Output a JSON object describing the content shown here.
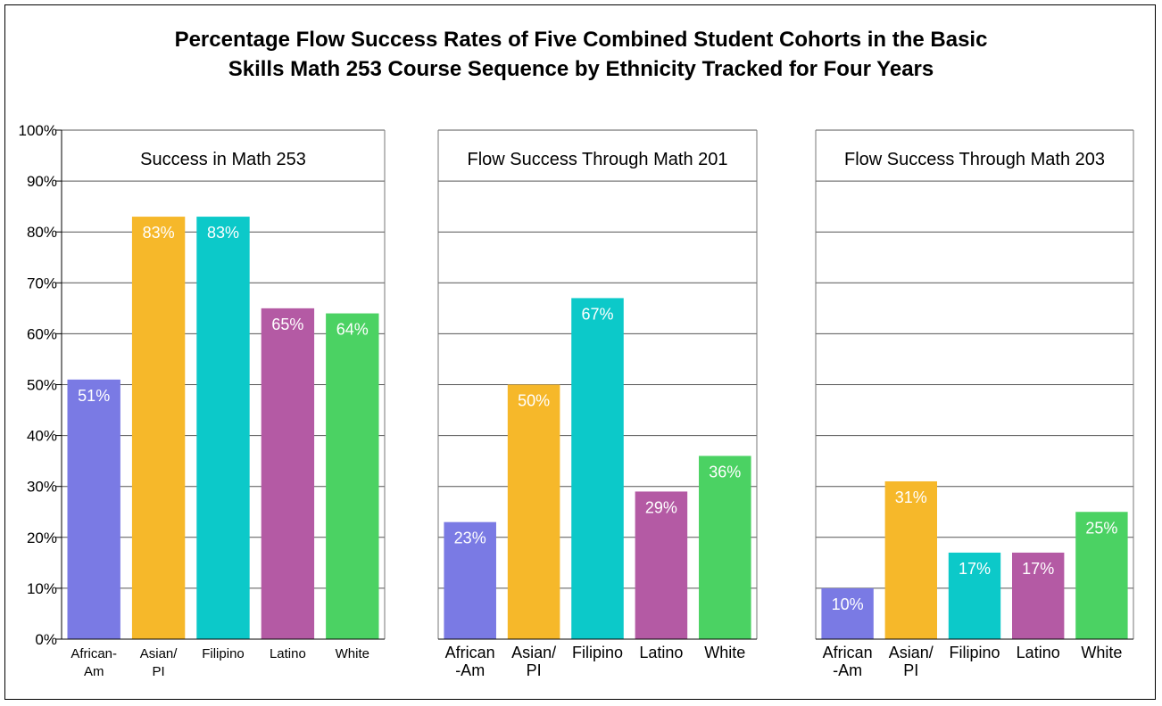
{
  "title_line1": "Percentage Flow Success Rates of Five Combined Student Cohorts in the Basic",
  "title_line2": "Skills Math 253 Course Sequence by Ethnicity Tracked for Four Years",
  "colors": {
    "African-Am": "#7a7ae4",
    "Asian/PI": "#f6b82a",
    "Filipino": "#0cc9c9",
    "Latino": "#b45aa4",
    "White": "#4bd263"
  },
  "chart_data": {
    "type": "bar",
    "ylim": [
      0,
      100
    ],
    "yticks": [
      "0%",
      "10%",
      "20%",
      "30%",
      "40%",
      "50%",
      "60%",
      "70%",
      "80%",
      "90%",
      "100%"
    ],
    "grid": true,
    "panels": [
      {
        "title": "Success in Math 253",
        "category_labels": [
          [
            "African-",
            "Am"
          ],
          [
            "Asian/",
            "PI"
          ],
          [
            "Filipino"
          ],
          [
            "Latino"
          ],
          [
            "White"
          ]
        ],
        "categories": [
          "African-Am",
          "Asian/PI",
          "Filipino",
          "Latino",
          "White"
        ],
        "values": [
          51,
          83,
          83,
          65,
          64
        ],
        "labels": [
          "51%",
          "83%",
          "83%",
          "65%",
          "64%"
        ]
      },
      {
        "title": "Flow Success Through Math 201",
        "category_labels": [
          [
            "African",
            "-Am"
          ],
          [
            "Asian/",
            "PI"
          ],
          [
            "Filipino"
          ],
          [
            "Latino"
          ],
          [
            "White"
          ]
        ],
        "categories": [
          "African-Am",
          "Asian/PI",
          "Filipino",
          "Latino",
          "White"
        ],
        "values": [
          23,
          50,
          67,
          29,
          36
        ],
        "labels": [
          "23%",
          "50%",
          "67%",
          "29%",
          "36%"
        ]
      },
      {
        "title": "Flow Success Through Math 203",
        "category_labels": [
          [
            "African",
            "-Am"
          ],
          [
            "Asian/",
            "PI"
          ],
          [
            "Filipino"
          ],
          [
            "Latino"
          ],
          [
            "White"
          ]
        ],
        "categories": [
          "African-Am",
          "Asian/PI",
          "Filipino",
          "Latino",
          "White"
        ],
        "values": [
          10,
          31,
          17,
          17,
          25
        ],
        "labels": [
          "10%",
          "31%",
          "17%",
          "17%",
          "25%"
        ]
      }
    ]
  }
}
